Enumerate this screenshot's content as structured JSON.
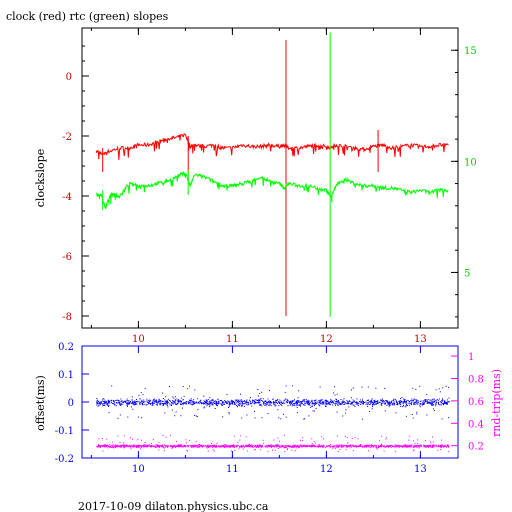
{
  "chart_data": [
    {
      "type": "line",
      "title": "clock (red) rtc (green) slopes",
      "xlabel": "",
      "ylabel": "clockslope",
      "xlim": [
        9.4,
        13.4
      ],
      "ylim": [
        -8.4,
        1.6
      ],
      "x_ticks": [
        10,
        11,
        12,
        13
      ],
      "y_ticks": [
        0,
        -2,
        -4,
        -6,
        -8
      ],
      "y2_ticks": [
        15,
        10,
        5
      ],
      "y2lim": [
        2.5,
        16.0
      ],
      "series": [
        {
          "name": "clock",
          "color": "#ff0000",
          "axis": "left",
          "x": [
            9.55,
            9.6,
            9.7,
            9.8,
            9.9,
            10.0,
            10.1,
            10.2,
            10.3,
            10.4,
            10.5,
            10.55,
            10.6,
            10.7,
            10.8,
            10.9,
            11.0,
            11.1,
            11.2,
            11.3,
            11.4,
            11.5,
            11.55,
            11.6,
            11.7,
            11.8,
            11.9,
            12.0,
            12.05,
            12.1,
            12.2,
            12.3,
            12.4,
            12.5,
            12.6,
            12.7,
            12.8,
            12.9,
            13.0,
            13.1,
            13.2,
            13.3
          ],
          "y": [
            -2.5,
            -2.6,
            -2.5,
            -2.4,
            -2.4,
            -2.3,
            -2.3,
            -2.2,
            -2.1,
            -2.05,
            -1.95,
            -2.35,
            -2.3,
            -2.35,
            -2.3,
            -2.4,
            -2.4,
            -2.3,
            -2.35,
            -2.35,
            -2.3,
            -2.35,
            -2.3,
            -2.4,
            -2.4,
            -2.35,
            -2.3,
            -2.35,
            -2.4,
            -2.3,
            -2.35,
            -2.4,
            -2.45,
            -2.35,
            -2.3,
            -2.4,
            -2.35,
            -2.3,
            -2.35,
            -2.35,
            -2.3,
            -2.3
          ],
          "spikes": [
            {
              "x": 11.57,
              "min": -8.0,
              "max": 1.2
            },
            {
              "x": 9.62,
              "min": -3.2,
              "max": -2.4
            },
            {
              "x": 10.53,
              "min": -3.3,
              "max": -2.0
            },
            {
              "x": 12.55,
              "min": -3.2,
              "max": -1.8
            }
          ]
        },
        {
          "name": "rtc",
          "color": "#00ff00",
          "axis": "right",
          "x": [
            9.55,
            9.6,
            9.65,
            9.7,
            9.75,
            9.8,
            9.9,
            10.0,
            10.1,
            10.2,
            10.3,
            10.4,
            10.5,
            10.55,
            10.6,
            10.7,
            10.8,
            10.9,
            11.0,
            11.1,
            11.2,
            11.3,
            11.4,
            11.5,
            11.55,
            11.6,
            11.7,
            11.8,
            11.9,
            12.0,
            12.05,
            12.1,
            12.2,
            12.3,
            12.4,
            12.5,
            12.6,
            12.7,
            12.8,
            12.9,
            13.0,
            13.1,
            13.2,
            13.3
          ],
          "y": [
            8.5,
            8.5,
            7.9,
            8.5,
            8.5,
            8.4,
            9.0,
            8.9,
            8.9,
            9.0,
            9.1,
            9.3,
            9.5,
            8.9,
            9.4,
            9.3,
            9.1,
            8.9,
            8.9,
            9.0,
            9.1,
            9.3,
            9.1,
            9.0,
            8.8,
            9.0,
            8.9,
            8.9,
            8.8,
            8.7,
            8.4,
            8.9,
            9.2,
            9.0,
            8.9,
            8.9,
            8.8,
            8.8,
            8.7,
            8.6,
            8.7,
            8.6,
            8.7,
            8.7
          ],
          "spikes": [
            {
              "x": 12.04,
              "min": 3.0,
              "max": 15.8
            },
            {
              "x": 9.62,
              "min": 7.8,
              "max": 8.7
            },
            {
              "x": 10.53,
              "min": 8.5,
              "max": 9.6
            }
          ]
        }
      ]
    },
    {
      "type": "scatter",
      "ylabel": "offset(ms)",
      "y2label": "rnd-trip(ms)",
      "xlim": [
        9.4,
        13.4
      ],
      "ylim": [
        -0.2,
        0.2
      ],
      "y2lim": [
        0.09,
        1.09
      ],
      "x_ticks": [
        10,
        11,
        12,
        13
      ],
      "y_ticks": [
        "0.2",
        "0.1",
        "0",
        "-0.1",
        "-0.2"
      ],
      "y2_ticks": [
        "1",
        "0.8",
        "0.6",
        "0.4",
        "0.2"
      ],
      "series": [
        {
          "name": "offset",
          "color": "#0000ff",
          "axis": "left",
          "x_range": [
            9.55,
            13.3
          ],
          "center": 0.0,
          "spread": 0.012,
          "outlier_range": [
            -0.06,
            0.06
          ]
        },
        {
          "name": "rnd-trip",
          "color": "#ff00ff",
          "axis": "right",
          "x_range": [
            9.55,
            13.3
          ],
          "center": 0.2,
          "spread": 0.012,
          "outlier_range": [
            0.15,
            0.3
          ]
        }
      ]
    }
  ],
  "footer": "2017-10-09 dilaton.physics.ubc.ca"
}
